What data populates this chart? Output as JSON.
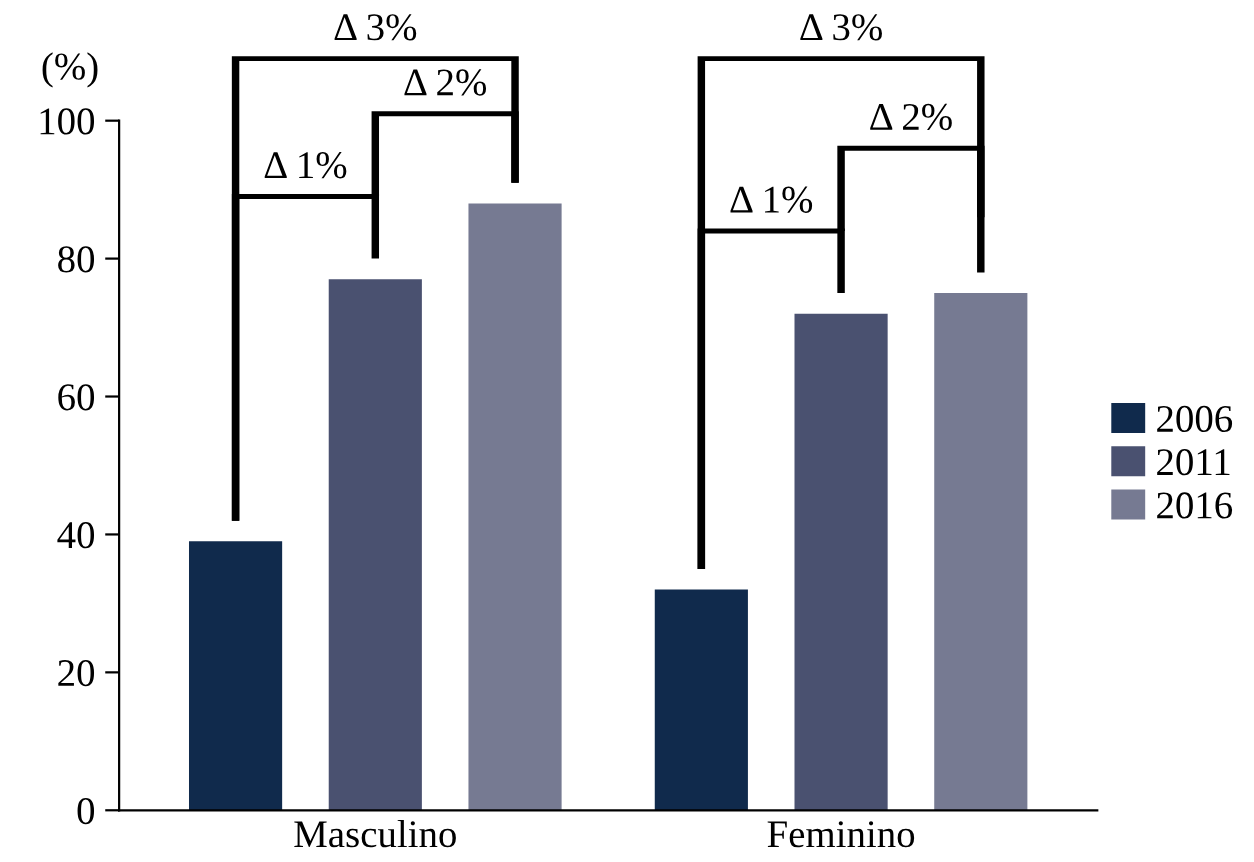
{
  "chart_data": {
    "type": "bar",
    "ylabel": "(%)",
    "categories": [
      "Masculino",
      "Feminino"
    ],
    "series": [
      {
        "name": "2006",
        "color": "#102a4c",
        "values": [
          39,
          32
        ]
      },
      {
        "name": "2011",
        "color": "#4a5170",
        "values": [
          77,
          72
        ]
      },
      {
        "name": "2016",
        "color": "#767a92",
        "values": [
          88,
          75
        ]
      }
    ],
    "ylim": [
      0,
      100
    ],
    "yticks": [
      0,
      20,
      40,
      60,
      80,
      100
    ],
    "grid": false,
    "legend": "right",
    "annotations": [
      "Δ 1%",
      "Δ 2%",
      "Δ 3%",
      "Δ 1%",
      "Δ 2%",
      "Δ 3%"
    ]
  }
}
